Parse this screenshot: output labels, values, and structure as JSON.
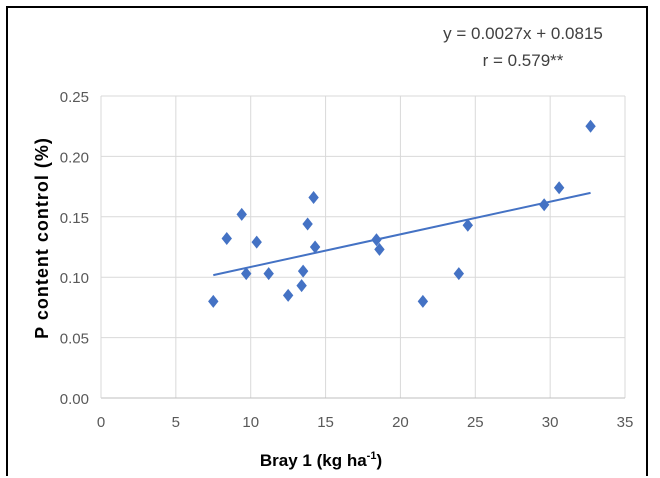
{
  "chart_data": {
    "type": "scatter",
    "title": "",
    "xlabel": "Bray 1 (kg ha",
    "xlabel_superscript": "-1",
    "xlabel_suffix": ")",
    "ylabel": "P content control (%)",
    "xlim": [
      0,
      35
    ],
    "ylim": [
      0,
      0.25
    ],
    "x_ticks": [
      "0",
      "5",
      "10",
      "15",
      "20",
      "25",
      "30",
      "35"
    ],
    "y_ticks": [
      "0.00",
      "0.05",
      "0.10",
      "0.15",
      "0.20",
      "0.25"
    ],
    "grid": true,
    "marker": "diamond",
    "series": [
      {
        "color": "#4472C4",
        "points": [
          {
            "x": 7.5,
            "y": 0.08
          },
          {
            "x": 8.4,
            "y": 0.132
          },
          {
            "x": 9.4,
            "y": 0.152
          },
          {
            "x": 9.7,
            "y": 0.103
          },
          {
            "x": 10.4,
            "y": 0.129
          },
          {
            "x": 11.2,
            "y": 0.103
          },
          {
            "x": 12.5,
            "y": 0.085
          },
          {
            "x": 13.4,
            "y": 0.093
          },
          {
            "x": 13.5,
            "y": 0.105
          },
          {
            "x": 13.8,
            "y": 0.144
          },
          {
            "x": 14.2,
            "y": 0.166
          },
          {
            "x": 14.3,
            "y": 0.125
          },
          {
            "x": 18.4,
            "y": 0.131
          },
          {
            "x": 18.6,
            "y": 0.123
          },
          {
            "x": 21.5,
            "y": 0.08
          },
          {
            "x": 23.9,
            "y": 0.103
          },
          {
            "x": 24.5,
            "y": 0.143
          },
          {
            "x": 29.6,
            "y": 0.16
          },
          {
            "x": 30.6,
            "y": 0.174
          },
          {
            "x": 32.7,
            "y": 0.225
          }
        ]
      }
    ],
    "trendline": {
      "slope": 0.0027,
      "intercept": 0.0815,
      "x_range": [
        7.5,
        32.7
      ],
      "color": "#4472C4",
      "equation": "y = 0.0027x + 0.0815",
      "r_label": "r = 0.579**"
    }
  }
}
